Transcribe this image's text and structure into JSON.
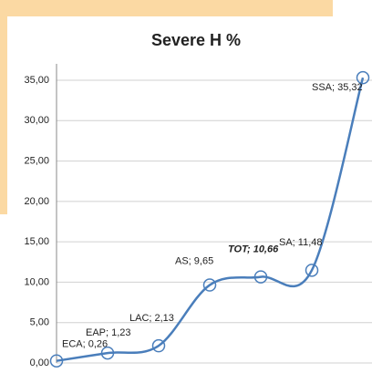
{
  "chart_data": {
    "type": "line",
    "title": "Severe H  %",
    "categories": [
      "ECA",
      "EAP",
      "LAC",
      "AS",
      "TOT",
      "SA",
      "SSA"
    ],
    "series": [
      {
        "name": "Severe H  %",
        "color": "#4a7ebb",
        "values": [
          0.26,
          1.23,
          2.13,
          9.65,
          10.66,
          11.48,
          35.32
        ],
        "value_labels": [
          "ECA; 0,26",
          "EAP; 1,23",
          "LAC; 2,13",
          "AS; 9,65",
          "TOT; 10,66",
          "SA; 11,48",
          "SSA; 35,32"
        ]
      }
    ],
    "ylim": [
      0,
      35
    ],
    "yticks": [
      {
        "value": 0,
        "label": "0,00"
      },
      {
        "value": 5,
        "label": "5,00"
      },
      {
        "value": 10,
        "label": "10,00"
      },
      {
        "value": 15,
        "label": "15,00"
      },
      {
        "value": 20,
        "label": "20,00"
      },
      {
        "value": 25,
        "label": "25,00"
      },
      {
        "value": 30,
        "label": "30,00"
      },
      {
        "value": 35,
        "label": "35,00"
      }
    ],
    "grid": true
  }
}
